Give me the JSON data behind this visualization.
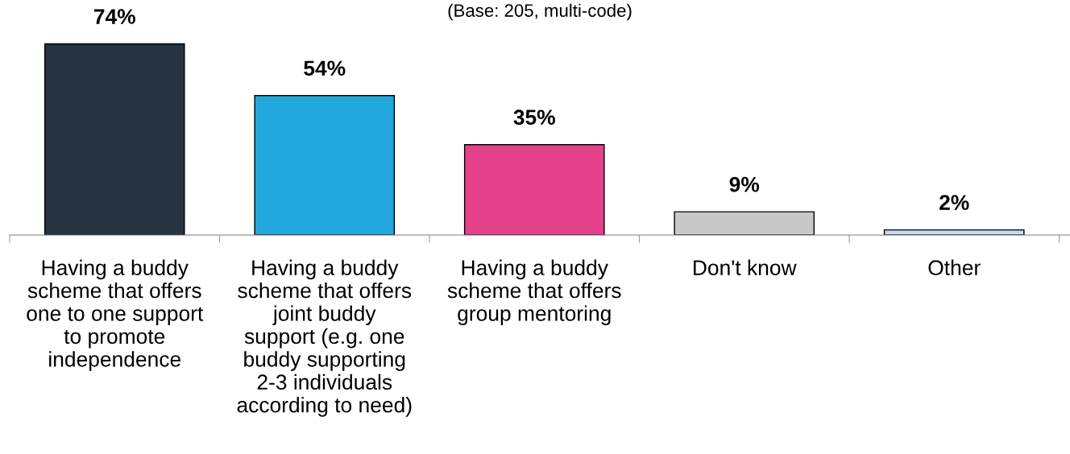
{
  "chart_data": {
    "type": "bar",
    "subtitle": "(Base: 205, multi-code)",
    "categories": [
      "Having a buddy\nscheme that offers\none to one support\nto promote\nindependence",
      "Having a buddy\nscheme that offers\njoint buddy\nsupport (e.g. one\nbuddy supporting\n2-3 individuals\naccording to need)",
      "Having a buddy\nscheme that offers\ngroup mentoring",
      "Don't know",
      "Other"
    ],
    "values": [
      74,
      54,
      35,
      9,
      2
    ],
    "colors": [
      "#263340",
      "#22a8dc",
      "#e4428a",
      "#c8c8c8",
      "#c5d9f1"
    ],
    "value_labels": [
      "74%",
      "54%",
      "35%",
      "9%",
      "2%"
    ],
    "grid": false,
    "legend": false
  }
}
